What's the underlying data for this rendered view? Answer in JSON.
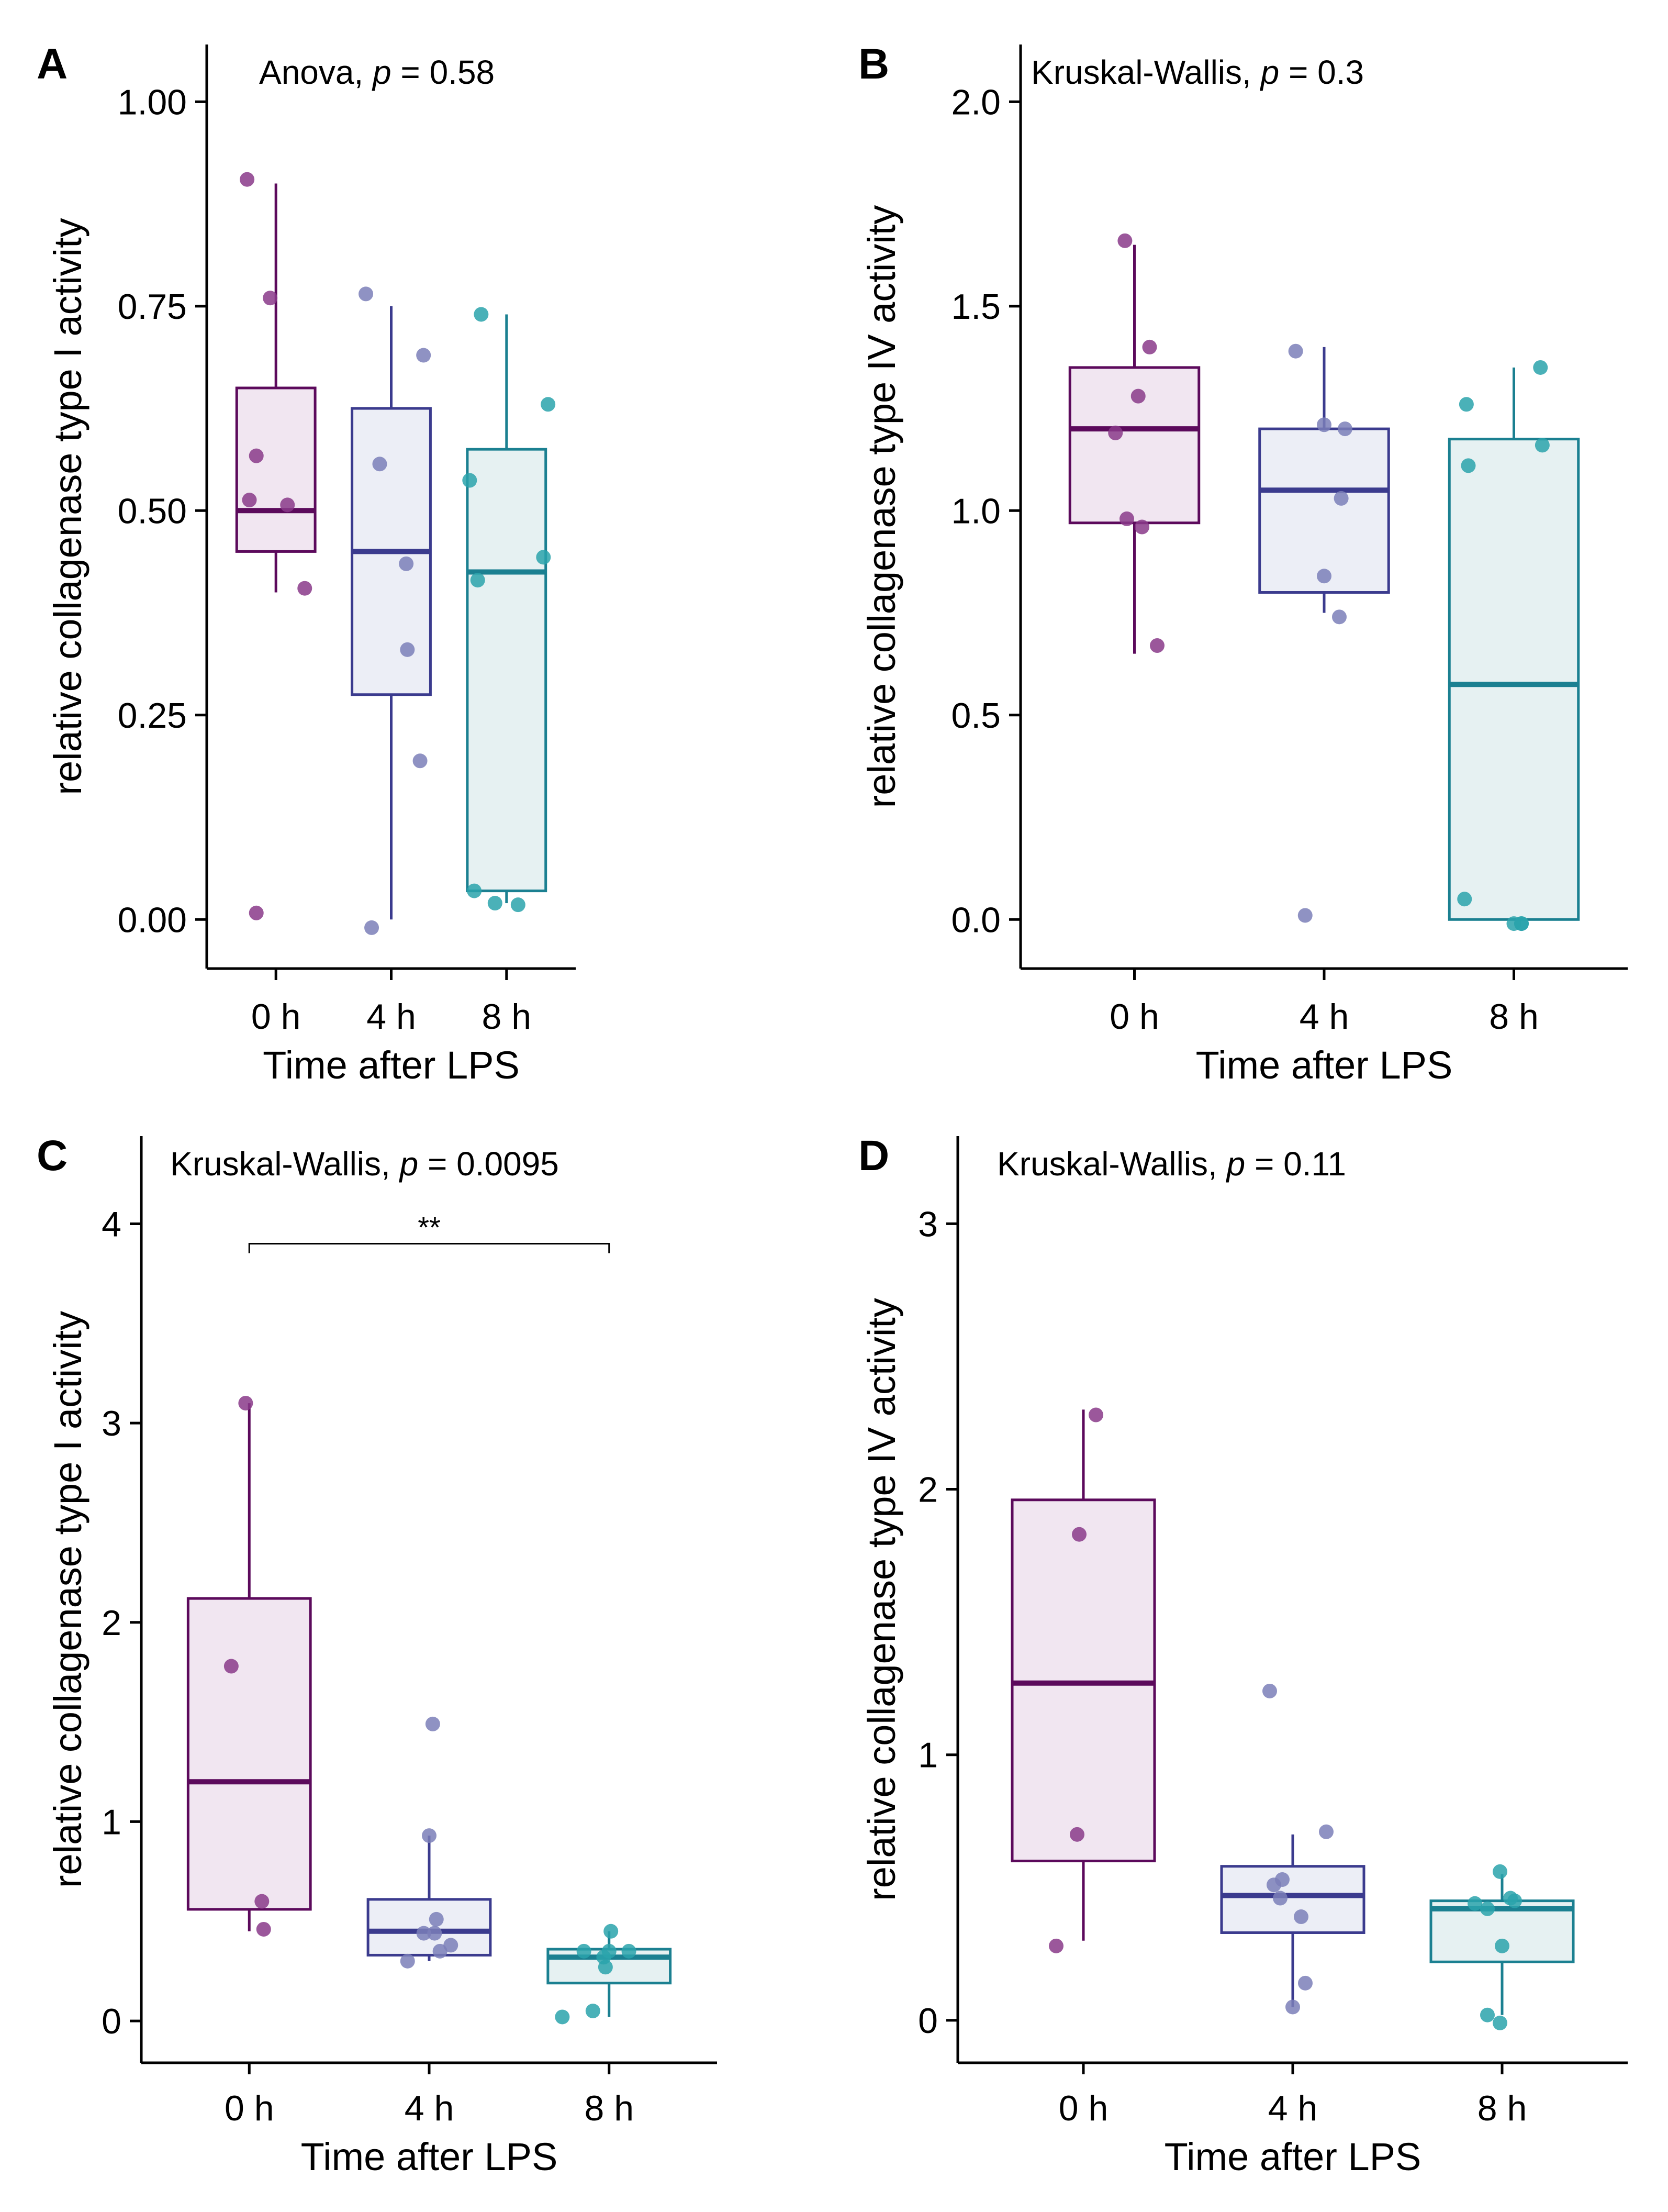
{
  "panel_colors": [
    "#5c0a5c",
    "#3b3b8e",
    "#1b8091"
  ],
  "box_fills": [
    "#f1e6f1",
    "#eceef6",
    "#e6f1f2"
  ],
  "point_colors": [
    "#8a3a8a",
    "#7b7fb8",
    "#2aa3ab"
  ],
  "chart_data": [
    {
      "type": "box",
      "panel": "A",
      "annotation": {
        "test": "Anova, ",
        "p_symbol": "p",
        "rest": " = 0.58"
      },
      "xlabel": "Time after LPS",
      "ylabel": "relative collagenase type I activity",
      "categories": [
        "0 h",
        "4 h",
        "8 h"
      ],
      "ylim": [
        -0.06,
        1.07
      ],
      "yticks": [
        0,
        0.25,
        0.5,
        0.75,
        1
      ],
      "ytick_labels": [
        "0.00",
        "0.25",
        "0.50",
        "0.75",
        "1.00"
      ],
      "boxes": [
        {
          "q1": 0.45,
          "median": 0.5,
          "q3": 0.65,
          "whisker_low": 0.4,
          "whisker_high": 0.9
        },
        {
          "q1": 0.275,
          "median": 0.45,
          "q3": 0.625,
          "whisker_low": 0.0,
          "whisker_high": 0.75
        },
        {
          "q1": 0.035,
          "median": 0.425,
          "q3": 0.575,
          "whisker_low": 0.02,
          "whisker_high": 0.74
        }
      ],
      "points": [
        [
          [
            -0.25,
            0.905
          ],
          [
            -0.05,
            0.76
          ],
          [
            -0.17,
            0.567
          ],
          [
            -0.23,
            0.513
          ],
          [
            0.1,
            0.507
          ],
          [
            0.25,
            0.405
          ],
          [
            -0.17,
            0.008
          ]
        ],
        [
          [
            -0.22,
            0.765
          ],
          [
            0.28,
            0.69
          ],
          [
            -0.1,
            0.557
          ],
          [
            0.13,
            0.435
          ],
          [
            0.14,
            0.33
          ],
          [
            0.25,
            0.194
          ],
          [
            -0.17,
            -0.01
          ]
        ],
        [
          [
            -0.22,
            0.74
          ],
          [
            0.36,
            0.63
          ],
          [
            -0.32,
            0.537
          ],
          [
            0.32,
            0.443
          ],
          [
            -0.25,
            0.415
          ],
          [
            -0.28,
            0.035
          ],
          [
            -0.1,
            0.02
          ],
          [
            0.1,
            0.018
          ]
        ]
      ]
    },
    {
      "type": "box",
      "panel": "B",
      "annotation": {
        "test": "Kruskal-Wallis, ",
        "p_symbol": "p",
        "rest": " = 0.3"
      },
      "xlabel": "Time after LPS",
      "ylabel": "relative collagenase type IV activity",
      "categories": [
        "0 h",
        "4 h",
        "8 h"
      ],
      "ylim": [
        -0.12,
        2.14
      ],
      "yticks": [
        0,
        0.5,
        1,
        1.5,
        2
      ],
      "ytick_labels": [
        "0.0",
        "0.5",
        "1.0",
        "1.5",
        "2.0"
      ],
      "boxes": [
        {
          "q1": 0.97,
          "median": 1.2,
          "q3": 1.35,
          "whisker_low": 0.65,
          "whisker_high": 1.65
        },
        {
          "q1": 0.8,
          "median": 1.05,
          "q3": 1.2,
          "whisker_low": 0.75,
          "whisker_high": 1.4
        },
        {
          "q1": 0.0,
          "median": 0.575,
          "q3": 1.175,
          "whisker_low": 0.0,
          "whisker_high": 1.35
        }
      ],
      "points": [
        [
          [
            -0.05,
            1.66
          ],
          [
            0.08,
            1.4
          ],
          [
            0.02,
            1.28
          ],
          [
            -0.1,
            1.19
          ],
          [
            -0.04,
            0.98
          ],
          [
            0.04,
            0.96
          ],
          [
            0.12,
            0.67
          ]
        ],
        [
          [
            -0.15,
            1.39
          ],
          [
            0.0,
            1.21
          ],
          [
            0.11,
            1.2
          ],
          [
            0.09,
            1.03
          ],
          [
            0.0,
            0.84
          ],
          [
            0.08,
            0.74
          ],
          [
            -0.1,
            0.01
          ]
        ],
        [
          [
            -0.25,
            1.26
          ],
          [
            0.14,
            1.35
          ],
          [
            -0.24,
            1.11
          ],
          [
            0.15,
            1.16
          ],
          [
            -0.26,
            0.05
          ],
          [
            0.0,
            -0.01
          ],
          [
            0.04,
            -0.01
          ],
          [
            0.04,
            -0.01
          ]
        ]
      ]
    },
    {
      "type": "box",
      "panel": "C",
      "annotation": {
        "test": "Kruskal-Wallis, ",
        "p_symbol": "p",
        "rest": " = 0.0095"
      },
      "xlabel": "Time after LPS",
      "ylabel": "relative collagenase type I activity",
      "categories": [
        "0 h",
        "4 h",
        "8 h"
      ],
      "ylim": [
        -0.21,
        4.44
      ],
      "yticks": [
        0,
        1,
        2,
        3,
        4
      ],
      "ytick_labels": [
        "0",
        "1",
        "2",
        "3",
        "4"
      ],
      "significance": {
        "from": 0,
        "to": 2,
        "y": 3.9,
        "label": "**"
      },
      "boxes": [
        {
          "q1": 0.56,
          "median": 1.2,
          "q3": 2.12,
          "whisker_low": 0.45,
          "whisker_high": 3.1
        },
        {
          "q1": 0.33,
          "median": 0.45,
          "q3": 0.61,
          "whisker_low": 0.3,
          "whisker_high": 0.93
        },
        {
          "q1": 0.19,
          "median": 0.32,
          "q3": 0.36,
          "whisker_low": 0.02,
          "whisker_high": 0.45
        }
      ],
      "points": [
        [
          [
            -0.02,
            3.1
          ],
          [
            -0.1,
            1.78
          ],
          [
            0.07,
            0.6
          ],
          [
            0.08,
            0.46
          ]
        ],
        [
          [
            0.02,
            1.49
          ],
          [
            0.0,
            0.93
          ],
          [
            0.04,
            0.51
          ],
          [
            0.03,
            0.44
          ],
          [
            -0.03,
            0.44
          ],
          [
            0.12,
            0.38
          ],
          [
            0.06,
            0.35
          ],
          [
            -0.12,
            0.3
          ]
        ],
        [
          [
            0.01,
            0.45
          ],
          [
            0.0,
            0.35
          ],
          [
            -0.14,
            0.35
          ],
          [
            0.11,
            0.35
          ],
          [
            -0.03,
            0.32
          ],
          [
            -0.02,
            0.27
          ],
          [
            -0.09,
            0.05
          ],
          [
            -0.26,
            0.02
          ]
        ]
      ]
    },
    {
      "type": "box",
      "panel": "D",
      "annotation": {
        "test": "Kruskal-Wallis, ",
        "p_symbol": "p",
        "rest": " = 0.11"
      },
      "xlabel": "Time after LPS",
      "ylabel": "relative collagenase type IV activity",
      "categories": [
        "0 h",
        "4 h",
        "8 h"
      ],
      "ylim": [
        -0.16,
        3.33
      ],
      "yticks": [
        0,
        1,
        2,
        3
      ],
      "ytick_labels": [
        "0",
        "1",
        "2",
        "3"
      ],
      "boxes": [
        {
          "q1": 0.6,
          "median": 1.27,
          "q3": 1.96,
          "whisker_low": 0.3,
          "whisker_high": 2.3
        },
        {
          "q1": 0.33,
          "median": 0.47,
          "q3": 0.58,
          "whisker_low": 0.05,
          "whisker_high": 0.7
        },
        {
          "q1": 0.22,
          "median": 0.42,
          "q3": 0.45,
          "whisker_low": 0.02,
          "whisker_high": 0.55
        }
      ],
      "points": [
        [
          [
            0.06,
            2.28
          ],
          [
            -0.02,
            1.83
          ],
          [
            -0.03,
            0.7
          ],
          [
            -0.13,
            0.28
          ]
        ],
        [
          [
            -0.11,
            1.24
          ],
          [
            0.16,
            0.71
          ],
          [
            -0.05,
            0.53
          ],
          [
            -0.09,
            0.51
          ],
          [
            -0.06,
            0.46
          ],
          [
            0.04,
            0.39
          ],
          [
            0.06,
            0.14
          ],
          [
            0.0,
            0.05
          ]
        ],
        [
          [
            -0.01,
            0.56
          ],
          [
            0.04,
            0.46
          ],
          [
            0.06,
            0.45
          ],
          [
            -0.13,
            0.44
          ],
          [
            -0.07,
            0.42
          ],
          [
            0.0,
            0.28
          ],
          [
            -0.07,
            0.02
          ],
          [
            -0.01,
            -0.01
          ]
        ]
      ]
    }
  ]
}
